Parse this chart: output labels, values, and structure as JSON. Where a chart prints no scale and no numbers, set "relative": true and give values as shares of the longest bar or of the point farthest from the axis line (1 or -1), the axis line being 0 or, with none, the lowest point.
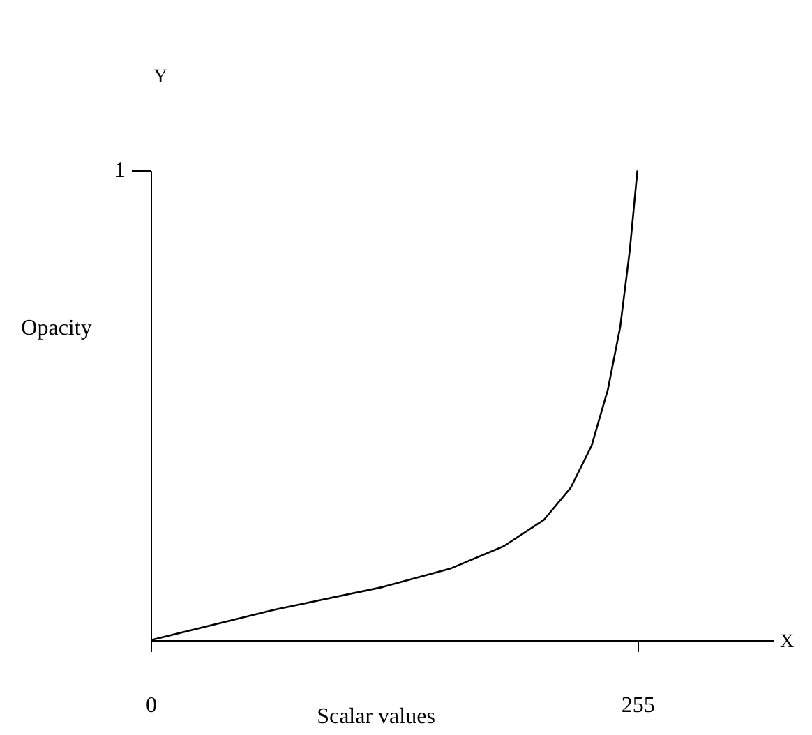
{
  "chart_data": {
    "type": "line",
    "relative": true,
    "xlabel": "Scalar values",
    "ylabel": "Opacity",
    "annotations": [
      "X",
      "Y",
      "1"
    ],
    "x": [
      0,
      65,
      121.5,
      156.8,
      185,
      206,
      220,
      231,
      239.5,
      246,
      251,
      255
    ],
    "series": [
      {
        "color": "#000000",
        "values": [
          0,
          0.065,
          0.113,
          0.152,
          0.2,
          0.256,
          0.324,
          0.414,
          0.533,
          0.667,
          0.83,
          1
        ]
      }
    ],
    "xlim": [
      0,
      326
    ],
    "xticks": [
      0,
      255
    ],
    "grid": false,
    "legend": false,
    "marker": "none",
    "line_style": "solid"
  }
}
